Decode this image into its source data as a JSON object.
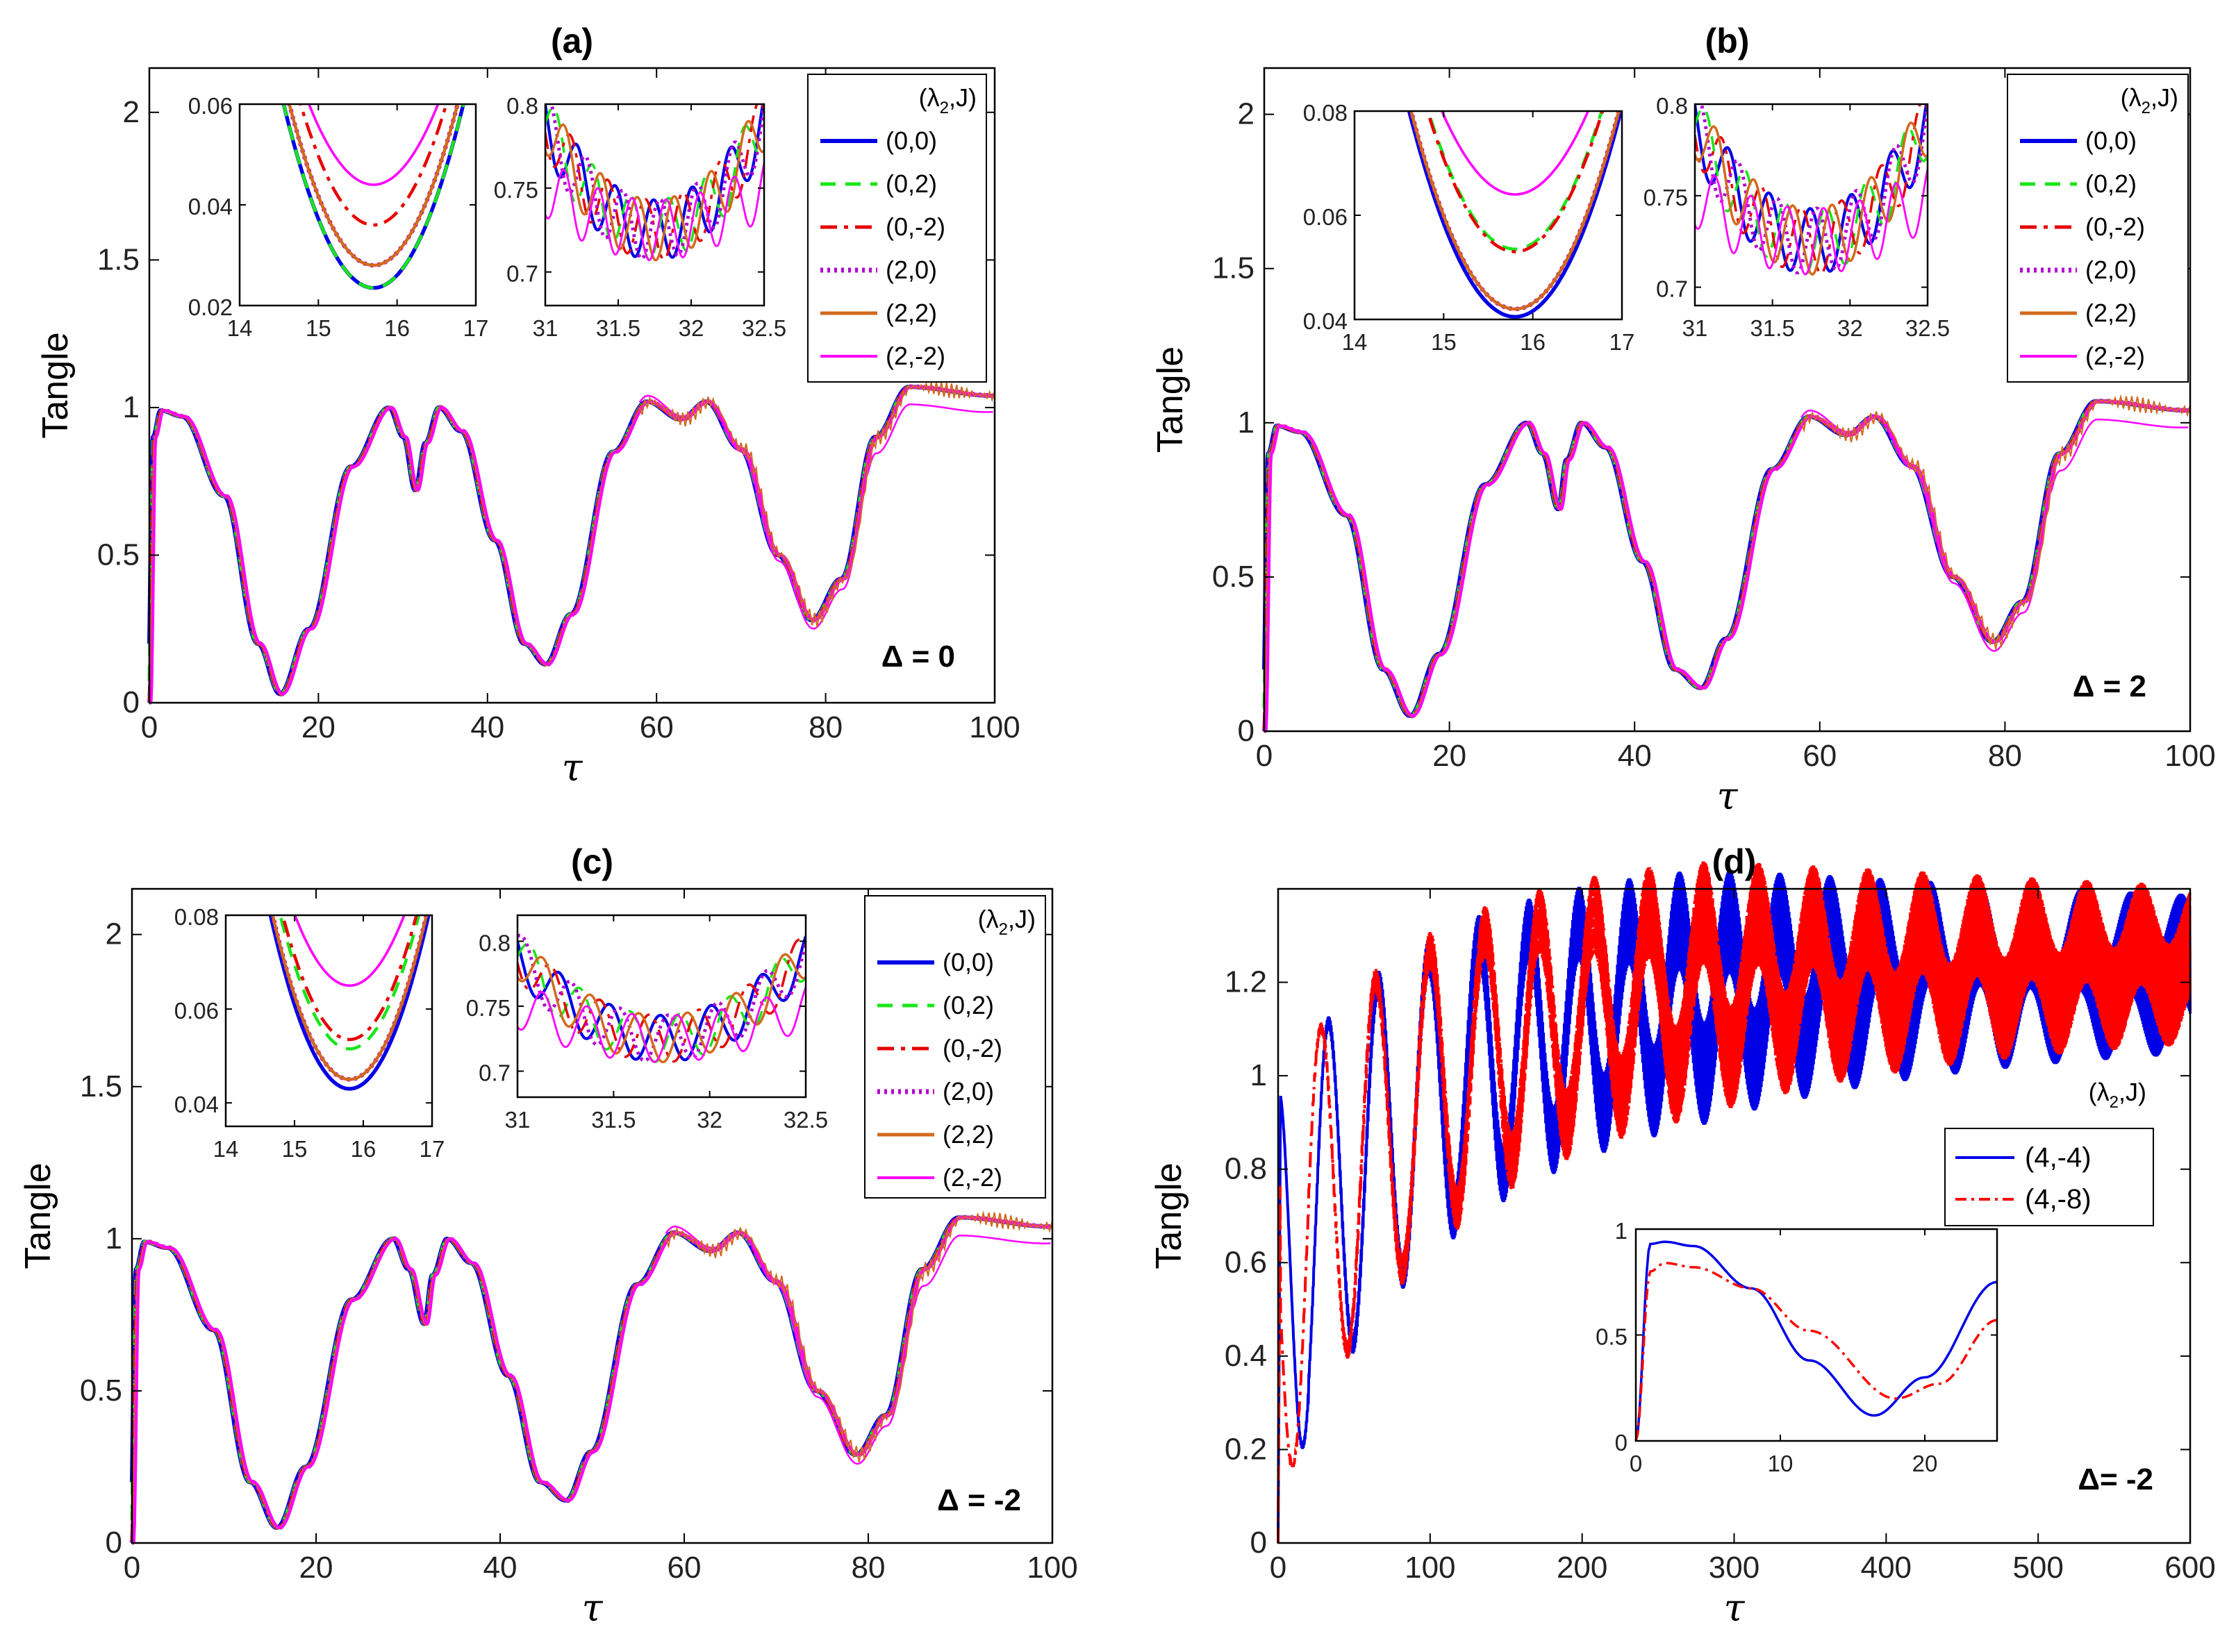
{
  "colors": {
    "c00": "#0000e6",
    "c02": "#18e618",
    "c0m2": "#e60000",
    "c20": "#b000d0",
    "c22": "#d2691e",
    "c2m2": "#ff00ff",
    "d1": "#0000e6",
    "d2": "#ff0000"
  },
  "chart_data": [
    {
      "type": "line",
      "panel": "(a)",
      "title": "(a)",
      "xlabel": "τ",
      "ylabel": "Tangle",
      "xlim": [
        0,
        100
      ],
      "ylim": [
        0,
        2.15
      ],
      "xticks": [
        "0",
        "20",
        "40",
        "60",
        "80",
        "100"
      ],
      "yticks": [
        "0",
        "0.5",
        "1",
        "1.5",
        "2"
      ],
      "annotation": "Δ = 0",
      "legend_title": "(λ2,J)",
      "series": [
        {
          "name": "(0,0)"
        },
        {
          "name": "(0,2)"
        },
        {
          "name": "(0,-2)"
        },
        {
          "name": "(2,0)"
        },
        {
          "name": "(2,2)"
        },
        {
          "name": "(2,-2)"
        }
      ],
      "key_points": {
        "x": [
          0,
          1,
          15.5,
          28.5,
          31.5,
          34.5,
          47,
          59,
          63,
          66,
          78.5,
          90,
          100
        ],
        "y": [
          0,
          1.0,
          0.03,
          1.0,
          0.72,
          1.0,
          0.13,
          1.03,
          0.96,
          1.03,
          0.28,
          1.08,
          1.05
        ]
      },
      "inset1": {
        "xlim": [
          14,
          17
        ],
        "ylim": [
          0.02,
          0.06
        ],
        "xticks": [
          "14",
          "15",
          "16",
          "17"
        ],
        "yticks": [
          "0.02",
          "0.04",
          "0.06"
        ],
        "minima": [
          0.0235,
          0.0235,
          0.036,
          0.028,
          0.028,
          0.044
        ],
        "min_x": 15.7
      },
      "inset2": {
        "xlim": [
          31,
          32.5
        ],
        "ylim": [
          0.68,
          0.8
        ],
        "xticks": [
          "31",
          "31.5",
          "32",
          "32.5"
        ],
        "yticks": [
          "0.7",
          "0.75",
          "0.8"
        ]
      }
    },
    {
      "type": "line",
      "panel": "(b)",
      "title": "(b)",
      "xlabel": "τ",
      "ylabel": "Tangle",
      "xlim": [
        0,
        100
      ],
      "ylim": [
        0,
        2.15
      ],
      "xticks": [
        "0",
        "20",
        "40",
        "60",
        "80",
        "100"
      ],
      "yticks": [
        "0",
        "0.5",
        "1",
        "1.5",
        "2"
      ],
      "annotation": "Δ = 2",
      "legend_title": "(λ2,J)",
      "series": [
        {
          "name": "(0,0)"
        },
        {
          "name": "(0,2)"
        },
        {
          "name": "(0,-2)"
        },
        {
          "name": "(2,0)"
        },
        {
          "name": "(2,2)"
        },
        {
          "name": "(2,-2)"
        }
      ],
      "key_points": {
        "x": [
          0,
          1,
          15.7,
          28.5,
          31.7,
          34.5,
          47,
          59,
          63,
          66,
          79,
          90,
          100
        ],
        "y": [
          0,
          1.0,
          0.05,
          1.0,
          0.72,
          1.0,
          0.14,
          1.03,
          0.96,
          1.03,
          0.29,
          1.07,
          1.04
        ]
      },
      "inset1": {
        "xlim": [
          14,
          17
        ],
        "ylim": [
          0.04,
          0.08
        ],
        "xticks": [
          "14",
          "15",
          "16",
          "17"
        ],
        "yticks": [
          "0.04",
          "0.06",
          "0.08"
        ],
        "minima": [
          0.0405,
          0.0535,
          0.053,
          0.042,
          0.042,
          0.064
        ],
        "min_x": 15.8
      },
      "inset2": {
        "xlim": [
          31,
          32.5
        ],
        "ylim": [
          0.69,
          0.8
        ],
        "xticks": [
          "31",
          "31.5",
          "32",
          "32.5"
        ],
        "yticks": [
          "0.7",
          "0.75",
          "0.8"
        ]
      }
    },
    {
      "type": "line",
      "panel": "(c)",
      "title": "(c)",
      "xlabel": "τ",
      "ylabel": "Tangle",
      "xlim": [
        0,
        100
      ],
      "ylim": [
        0,
        2.15
      ],
      "xticks": [
        "0",
        "20",
        "40",
        "60",
        "80",
        "100"
      ],
      "yticks": [
        "0",
        "0.5",
        "1",
        "1.5",
        "2"
      ],
      "annotation": "Δ = -2",
      "legend_title": "(λ2,J)",
      "series": [
        {
          "name": "(0,0)"
        },
        {
          "name": "(0,2)"
        },
        {
          "name": "(0,-2)"
        },
        {
          "name": "(2,0)"
        },
        {
          "name": "(2,2)"
        },
        {
          "name": "(2,-2)"
        }
      ],
      "key_points": {
        "x": [
          0,
          1,
          15.7,
          28.5,
          31.7,
          34.5,
          47,
          59,
          63,
          66,
          79,
          90,
          100
        ],
        "y": [
          0,
          1.0,
          0.05,
          1.0,
          0.72,
          1.0,
          0.14,
          1.03,
          0.96,
          1.03,
          0.29,
          1.07,
          1.04
        ]
      },
      "inset1": {
        "xlim": [
          14,
          17
        ],
        "ylim": [
          0.035,
          0.08
        ],
        "xticks": [
          "14",
          "15",
          "16",
          "17"
        ],
        "yticks": [
          "0.04",
          "0.06",
          "0.08"
        ],
        "minima": [
          0.043,
          0.0515,
          0.0535,
          0.045,
          0.045,
          0.065
        ],
        "min_x": 15.8
      },
      "inset2": {
        "xlim": [
          31,
          32.5
        ],
        "ylim": [
          0.68,
          0.82
        ],
        "xticks": [
          "31",
          "31.5",
          "32",
          "32.5"
        ],
        "yticks": [
          "0.7",
          "0.75",
          "0.8"
        ]
      }
    },
    {
      "type": "line",
      "panel": "(d)",
      "title": "(d)",
      "xlabel": "τ",
      "ylabel": "Tangle",
      "xlim": [
        0,
        600
      ],
      "ylim": [
        0,
        1.4
      ],
      "xticks": [
        "0",
        "100",
        "200",
        "300",
        "400",
        "500",
        "600"
      ],
      "yticks": [
        "0",
        "0.2",
        "0.4",
        "0.6",
        "0.8",
        "1",
        "1.2"
      ],
      "annotation": "Δ= -2",
      "legend_title": "(λ2,J)",
      "series": [
        {
          "name": "(4,-4)",
          "period": 33,
          "first_min": 0.13,
          "late_mean": 1.22
        },
        {
          "name": "(4,-8)",
          "period": 36,
          "first_min": 0.2,
          "late_mean": 1.24
        }
      ],
      "inset": {
        "xlim": [
          0,
          25
        ],
        "ylim": [
          0,
          1
        ],
        "xticks": [
          "0",
          "10",
          "20"
        ],
        "yticks": [
          "0",
          "0.5",
          "1"
        ],
        "series": [
          {
            "name": "(4,-4)",
            "x": [
              0,
              1,
              2,
              4,
              8,
              12,
              16.5,
              20,
              25
            ],
            "y": [
              0,
              0.93,
              0.94,
              0.92,
              0.72,
              0.38,
              0.12,
              0.3,
              0.75
            ]
          },
          {
            "name": "(4,-8)",
            "x": [
              0,
              1,
              2,
              4,
              8,
              12,
              18,
              21,
              25
            ],
            "y": [
              0,
              0.8,
              0.84,
              0.82,
              0.72,
              0.52,
              0.2,
              0.27,
              0.57
            ]
          }
        ]
      }
    }
  ]
}
